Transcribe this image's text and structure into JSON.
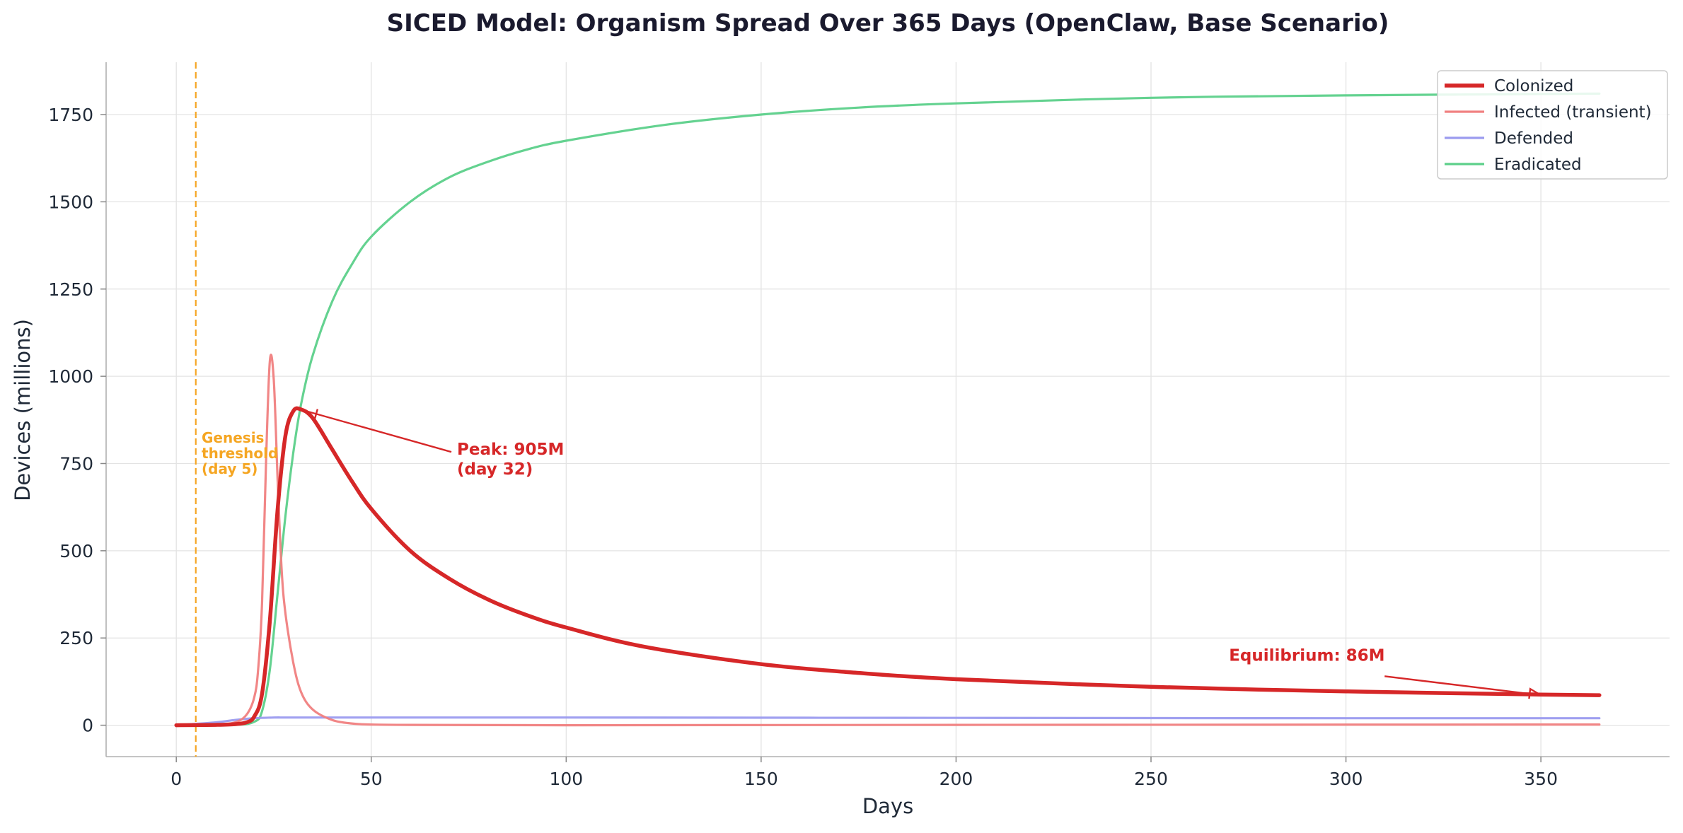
{
  "chart_data": {
    "type": "line",
    "title": "SICED Model: Organism Spread Over 365 Days (OpenClaw, Base Scenario)",
    "xlabel": "Days",
    "ylabel": "Devices (millions)",
    "xlim": [
      -18,
      383
    ],
    "ylim": [
      -90,
      1900
    ],
    "xticks": [
      0,
      50,
      100,
      150,
      200,
      250,
      300,
      350
    ],
    "yticks": [
      0,
      250,
      500,
      750,
      1000,
      1250,
      1500,
      1750
    ],
    "grid": true,
    "legend_position": "top-right",
    "series": [
      {
        "name": "Colonized",
        "color": "#d62728",
        "x": [
          0,
          10,
          15,
          18,
          20,
          22,
          24,
          26,
          28,
          30,
          32,
          35,
          40,
          45,
          50,
          60,
          70,
          80,
          90,
          100,
          120,
          150,
          175,
          200,
          250,
          300,
          350,
          365
        ],
        "y": [
          0,
          1,
          3,
          8,
          25,
          90,
          300,
          620,
          830,
          900,
          905,
          880,
          790,
          700,
          620,
          500,
          420,
          360,
          315,
          280,
          225,
          175,
          150,
          132,
          110,
          97,
          88,
          86
        ]
      },
      {
        "name": "Infected (transient)",
        "color": "#f08080",
        "x": [
          0,
          10,
          15,
          18,
          20,
          21,
          22,
          23,
          24,
          25,
          26,
          27,
          28,
          30,
          32,
          35,
          40,
          45,
          50,
          60,
          100,
          200,
          365
        ],
        "y": [
          0,
          2,
          8,
          30,
          80,
          160,
          350,
          750,
          1045,
          990,
          700,
          450,
          320,
          180,
          95,
          45,
          15,
          5,
          2,
          1,
          0,
          1,
          2
        ]
      },
      {
        "name": "Defended",
        "color": "#9b9bef",
        "x": [
          0,
          10,
          15,
          20,
          25,
          30,
          50,
          100,
          200,
          300,
          365
        ],
        "y": [
          0,
          8,
          15,
          20,
          22,
          22,
          22,
          22,
          21,
          20,
          20
        ]
      },
      {
        "name": "Eradicated",
        "color": "#5cd08a",
        "x": [
          0,
          15,
          20,
          22,
          24,
          26,
          28,
          30,
          32,
          35,
          40,
          45,
          50,
          60,
          70,
          80,
          90,
          100,
          125,
          150,
          175,
          200,
          250,
          300,
          365
        ],
        "y": [
          0,
          1,
          10,
          40,
          160,
          380,
          600,
          780,
          920,
          1060,
          1215,
          1320,
          1400,
          1500,
          1570,
          1615,
          1650,
          1675,
          1720,
          1750,
          1770,
          1782,
          1798,
          1805,
          1810
        ]
      }
    ],
    "vline": {
      "x": 5,
      "color": "#f5a623"
    },
    "annotations": [
      {
        "text": "Peak: 905M\n(day 32)",
        "x": 32,
        "y": 905,
        "text_x": 72,
        "text_y": 775,
        "color": "#d62728"
      },
      {
        "text": "Equilibrium: 86M",
        "x": 350,
        "y": 86,
        "text_x": 270,
        "text_y": 185,
        "color": "#d62728"
      },
      {
        "text": "Genesis\nthreshold\n(day 5)",
        "x": 6.5,
        "y": 810,
        "color": "#f5a623"
      }
    ]
  }
}
